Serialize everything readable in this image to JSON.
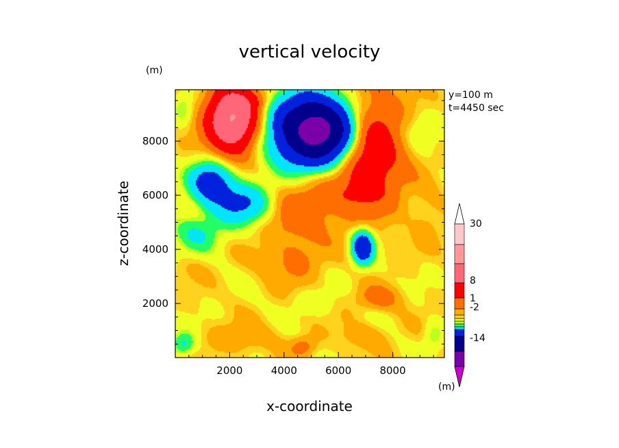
{
  "chart_data": {
    "type": "heatmap",
    "title": "vertical velocity",
    "xlabel": "x-coordinate",
    "ylabel": "z-coordinate",
    "x_unit_label": "(m)",
    "y_unit_label": "(m)",
    "xlim": [
      0,
      9900
    ],
    "ylim": [
      0,
      9900
    ],
    "x_ticks": [
      2000,
      4000,
      6000,
      8000
    ],
    "y_ticks": [
      2000,
      4000,
      6000,
      8000
    ],
    "annotations": [
      "y=100 m",
      "t=4450 sec"
    ],
    "colorbar": {
      "unit_label": "(m)",
      "tick_labels": [
        "30",
        "8",
        "1",
        "-2",
        "-14"
      ],
      "levels": [
        -30,
        -22,
        -14,
        -8,
        -4,
        -2,
        -1,
        -0.5,
        0.5,
        1,
        2,
        4,
        8,
        14,
        22,
        30
      ],
      "colors": [
        "#cc00cc",
        "#aa00cc",
        "#7a00a8",
        "#00008c",
        "#0022dd",
        "#00e5ff",
        "#22ff66",
        "#b8ff22",
        "#f0ff22",
        "#ffd21e",
        "#ffaa00",
        "#ff6e00",
        "#ff0000",
        "#ff6677",
        "#ff9999",
        "#ffc8c8",
        "#ffffff"
      ]
    },
    "field_description": "Contoured vertical velocity field; blobs give centre (x,z) in m, radii in m, and peak velocity.",
    "features": [
      {
        "x": 5200,
        "z": 8400,
        "rx": 1700,
        "rz": 1400,
        "value": -18
      },
      {
        "x": 2100,
        "z": 8800,
        "rx": 1000,
        "rz": 1300,
        "value": 14
      },
      {
        "x": 7100,
        "z": 7800,
        "rx": 1400,
        "rz": 2300,
        "value": 7
      },
      {
        "x": 1300,
        "z": 6500,
        "rx": 900,
        "rz": 900,
        "value": -6
      },
      {
        "x": 2500,
        "z": 5700,
        "rx": 1300,
        "rz": 900,
        "value": -5
      },
      {
        "x": 800,
        "z": 4600,
        "rx": 1100,
        "rz": 800,
        "value": -2.5
      },
      {
        "x": 6900,
        "z": 4100,
        "rx": 450,
        "rz": 700,
        "value": -8
      },
      {
        "x": 4500,
        "z": 5200,
        "rx": 1600,
        "rz": 1300,
        "value": 2.2
      },
      {
        "x": 4400,
        "z": 3500,
        "rx": 1000,
        "rz": 900,
        "value": 1.6
      },
      {
        "x": 5800,
        "z": 6000,
        "rx": 2000,
        "rz": 900,
        "value": 1.6
      },
      {
        "x": 7500,
        "z": 2200,
        "rx": 900,
        "rz": 500,
        "value": 2.2
      },
      {
        "x": 2400,
        "z": 700,
        "rx": 1400,
        "rz": 600,
        "value": 1.3
      },
      {
        "x": 4700,
        "z": 400,
        "rx": 500,
        "rz": 400,
        "value": 2.2
      },
      {
        "x": 6900,
        "z": 800,
        "rx": 900,
        "rz": 500,
        "value": 1.3
      },
      {
        "x": 5100,
        "z": 2000,
        "rx": 1000,
        "rz": 500,
        "value": -0.8
      },
      {
        "x": 600,
        "z": 3300,
        "rx": 700,
        "rz": 500,
        "value": 0.5
      },
      {
        "x": 8900,
        "z": 8400,
        "rx": 900,
        "rz": 900,
        "value": -1.2
      },
      {
        "x": 300,
        "z": 9200,
        "rx": 400,
        "rz": 600,
        "value": -1.5
      },
      {
        "x": 9500,
        "z": 800,
        "rx": 400,
        "rz": 600,
        "value": -1.5
      },
      {
        "x": 300,
        "z": 500,
        "rx": 500,
        "rz": 500,
        "value": -3
      },
      {
        "x": 2900,
        "z": 9500,
        "rx": 700,
        "rz": 400,
        "value": 1.5
      },
      {
        "x": 9300,
        "z": 5200,
        "rx": 600,
        "rz": 1200,
        "value": 0.8
      },
      {
        "x": 3200,
        "z": 3600,
        "rx": 800,
        "rz": 600,
        "value": 0.4
      }
    ],
    "background_value": 0.6
  }
}
